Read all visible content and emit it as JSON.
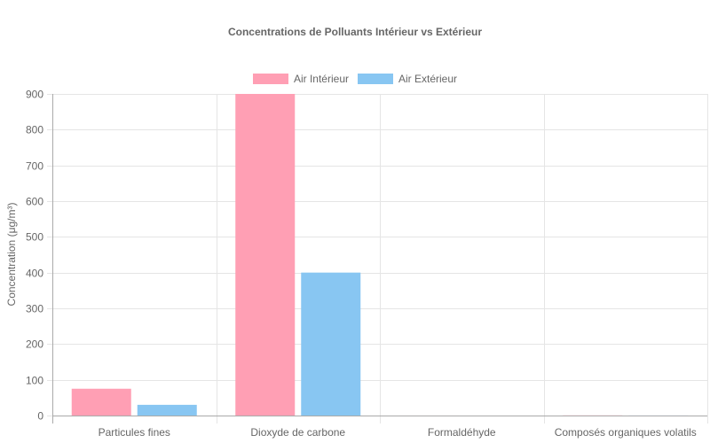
{
  "chart_data": {
    "type": "bar",
    "title": "Concentrations de Polluants Intérieur vs Extérieur",
    "xlabel": "",
    "ylabel": "Concentration (μg/m³)",
    "ylim": [
      0,
      900
    ],
    "yticks": [
      0,
      100,
      200,
      300,
      400,
      500,
      600,
      700,
      800,
      900
    ],
    "categories": [
      "Particules fines",
      "Dioxyde de carbone",
      "Formaldéhyde",
      "Composés organiques volatils"
    ],
    "series": [
      {
        "name": "Air Intérieur",
        "color": "#ff9fb4",
        "values": [
          75,
          900,
          0.1,
          0.5
        ]
      },
      {
        "name": "Air Extérieur",
        "color": "#88c6f2",
        "values": [
          30,
          400,
          0.02,
          0.2
        ]
      }
    ],
    "grid": true,
    "legend_position": "top"
  },
  "title": "Concentrations de Polluants Intérieur vs Extérieur",
  "legend": [
    {
      "label": "Air Intérieur",
      "color": "#ff9fb4"
    },
    {
      "label": "Air Extérieur",
      "color": "#88c6f2"
    }
  ],
  "y_axis_title": "Concentration (μg/m³)"
}
